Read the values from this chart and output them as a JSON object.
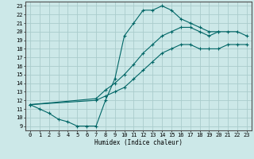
{
  "title": "",
  "xlabel": "Humidex (Indice chaleur)",
  "background_color": "#cce8e8",
  "grid_color": "#aacccc",
  "line_color": "#006666",
  "xlim": [
    -0.5,
    23.5
  ],
  "ylim": [
    8.5,
    23.5
  ],
  "xticks": [
    0,
    1,
    2,
    3,
    4,
    5,
    6,
    7,
    8,
    9,
    10,
    11,
    12,
    13,
    14,
    15,
    16,
    17,
    18,
    19,
    20,
    21,
    22,
    23
  ],
  "yticks": [
    9,
    10,
    11,
    12,
    13,
    14,
    15,
    16,
    17,
    18,
    19,
    20,
    21,
    22,
    23
  ],
  "curve1_x": [
    0,
    1,
    2,
    3,
    4,
    5,
    6,
    7,
    8,
    9,
    10,
    11,
    12,
    13,
    14,
    15,
    16,
    17,
    18,
    19,
    20
  ],
  "curve1_y": [
    11.5,
    11,
    10.5,
    9.8,
    9.5,
    9,
    9,
    9,
    12,
    14.5,
    19.5,
    21,
    22.5,
    22.5,
    23,
    22.5,
    21.5,
    21,
    20.5,
    20,
    20
  ],
  "curve2_x": [
    0,
    7,
    8,
    9,
    10,
    11,
    12,
    13,
    14,
    15,
    16,
    17,
    18,
    19,
    20,
    21,
    22,
    23
  ],
  "curve2_y": [
    11.5,
    12.2,
    13.2,
    14,
    15,
    16.2,
    17.5,
    18.5,
    19.5,
    20,
    20.5,
    20.5,
    20,
    19.5,
    20,
    20,
    20,
    19.5
  ],
  "curve3_x": [
    0,
    7,
    8,
    9,
    10,
    11,
    12,
    13,
    14,
    15,
    16,
    17,
    18,
    19,
    20,
    21,
    22,
    23
  ],
  "curve3_y": [
    11.5,
    12,
    12.5,
    13,
    13.5,
    14.5,
    15.5,
    16.5,
    17.5,
    18,
    18.5,
    18.5,
    18,
    18,
    18,
    18.5,
    18.5,
    18.5
  ]
}
